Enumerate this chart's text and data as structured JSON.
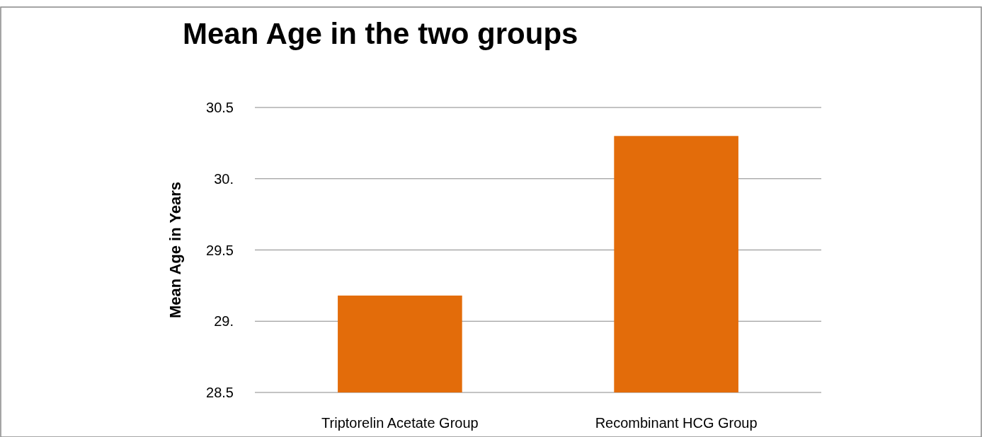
{
  "chart_data": {
    "type": "bar",
    "title": "Mean Age in the two groups",
    "ylabel": "Mean Age in Years",
    "categories": [
      "Triptorelin Acetate Group",
      "Recombinant HCG Group"
    ],
    "values": [
      29.18,
      30.3
    ],
    "color": "#e36c0a",
    "ylim": [
      28.5,
      30.5
    ],
    "yticks": [
      28.5,
      {
        "value": 29,
        "label": "29."
      },
      29.5,
      {
        "value": 30,
        "label": "30."
      },
      30.5
    ],
    "grid": "y"
  }
}
